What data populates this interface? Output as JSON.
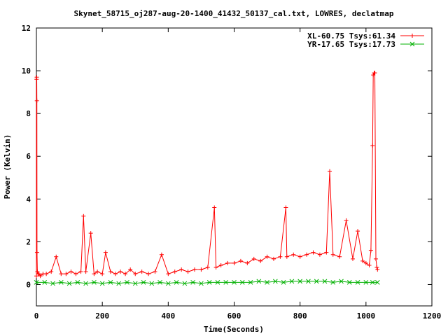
{
  "chart_data": {
    "type": "scatter",
    "title": "Skynet_58715_oj287-aug-20-1400_41432_50137_cal.txt, LOWRES, declatmap",
    "xlabel": "Time(Seconds)",
    "ylabel": "Power (Kelvin)",
    "xlim": [
      0,
      1200
    ],
    "ylim": [
      -1,
      12
    ],
    "xticks": [
      0,
      200,
      400,
      600,
      800,
      1000,
      1200
    ],
    "yticks": [
      0,
      2,
      4,
      6,
      8,
      10,
      12
    ],
    "grid": false,
    "legend_position": "top-right",
    "series": [
      {
        "name": "XL-60.75 Tsys:61.34",
        "color": "#ff0000",
        "marker": "plus",
        "x": [
          0,
          0.5,
          1,
          1.5,
          2,
          3,
          5,
          8,
          12,
          20,
          30,
          45,
          60,
          75,
          90,
          105,
          120,
          135,
          143,
          150,
          165,
          175,
          185,
          200,
          210,
          225,
          240,
          255,
          270,
          285,
          300,
          320,
          340,
          360,
          380,
          400,
          420,
          440,
          460,
          480,
          500,
          520,
          540,
          545,
          560,
          580,
          600,
          620,
          640,
          660,
          680,
          700,
          720,
          740,
          757,
          760,
          780,
          800,
          820,
          840,
          860,
          880,
          890,
          900,
          920,
          940,
          960,
          975,
          990,
          1000,
          1010,
          1015,
          1020,
          1022,
          1025,
          1027,
          1030,
          1033,
          1035
        ],
        "y": [
          0.4,
          9.6,
          9.7,
          8.6,
          1.5,
          0.6,
          0.5,
          0.5,
          0.4,
          0.5,
          0.5,
          0.6,
          1.3,
          0.5,
          0.5,
          0.6,
          0.5,
          0.6,
          3.2,
          0.6,
          2.4,
          0.5,
          0.6,
          0.5,
          1.5,
          0.6,
          0.5,
          0.6,
          0.5,
          0.7,
          0.5,
          0.6,
          0.5,
          0.6,
          1.4,
          0.5,
          0.6,
          0.7,
          0.6,
          0.7,
          0.7,
          0.8,
          3.6,
          0.8,
          0.9,
          1.0,
          1.0,
          1.1,
          1.0,
          1.2,
          1.1,
          1.3,
          1.2,
          1.3,
          3.6,
          1.3,
          1.4,
          1.3,
          1.4,
          1.5,
          1.4,
          1.5,
          5.3,
          1.4,
          1.3,
          3.0,
          1.2,
          2.5,
          1.1,
          1.0,
          0.9,
          1.6,
          6.5,
          9.8,
          9.9,
          9.9,
          1.2,
          0.8,
          0.7
        ]
      },
      {
        "name": "YR-17.65 Tsys:17.73",
        "color": "#00b000",
        "marker": "cross",
        "x": [
          0,
          25,
          50,
          75,
          100,
          125,
          150,
          175,
          200,
          225,
          250,
          275,
          300,
          325,
          350,
          375,
          400,
          425,
          450,
          475,
          500,
          525,
          550,
          575,
          600,
          625,
          650,
          675,
          700,
          725,
          750,
          775,
          800,
          825,
          850,
          875,
          900,
          925,
          950,
          975,
          1000,
          1020,
          1035
        ],
        "y": [
          0.1,
          0.1,
          0.05,
          0.1,
          0.05,
          0.1,
          0.05,
          0.1,
          0.05,
          0.1,
          0.05,
          0.1,
          0.05,
          0.1,
          0.05,
          0.1,
          0.05,
          0.1,
          0.05,
          0.1,
          0.05,
          0.1,
          0.1,
          0.1,
          0.1,
          0.1,
          0.1,
          0.15,
          0.1,
          0.15,
          0.1,
          0.15,
          0.15,
          0.15,
          0.15,
          0.15,
          0.1,
          0.15,
          0.1,
          0.1,
          0.1,
          0.1,
          0.1
        ]
      }
    ]
  }
}
